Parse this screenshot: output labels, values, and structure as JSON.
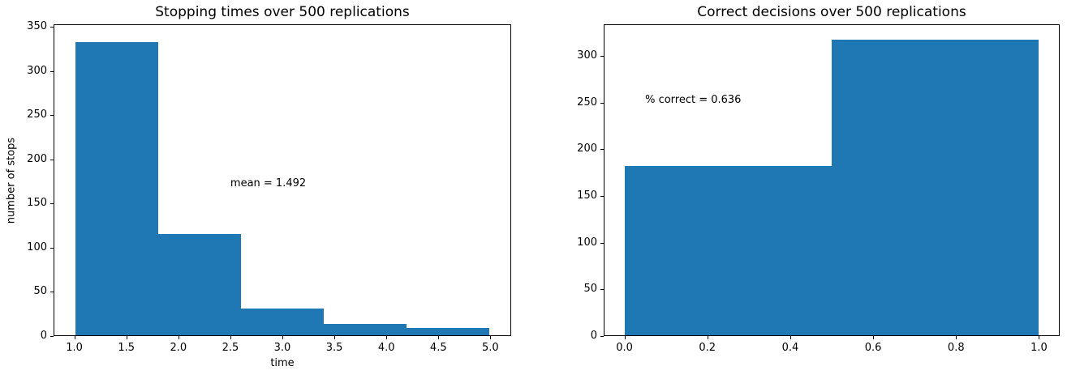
{
  "figure": {
    "background": "#ffffff",
    "bar_color": "#1f77b4",
    "axis_color": "#000000",
    "text_color": "#000000"
  },
  "chart_data": [
    {
      "type": "histogram",
      "title": "Stopping times over 500 replications",
      "xlabel": "time",
      "ylabel": "number of stops",
      "bin_edges": [
        1.0,
        1.8,
        2.6,
        3.4,
        4.2,
        5.0
      ],
      "counts": [
        334,
        115,
        30,
        13,
        8
      ],
      "total_replications": 500,
      "xlim": [
        0.8,
        5.2
      ],
      "ylim": [
        0,
        353
      ],
      "xtick_values": [
        1.0,
        1.5,
        2.0,
        2.5,
        3.0,
        3.5,
        4.0,
        4.5,
        5.0
      ],
      "xtick_labels": [
        "1.0",
        "1.5",
        "2.0",
        "2.5",
        "3.0",
        "3.5",
        "4.0",
        "4.5",
        "5.0"
      ],
      "ytick_values": [
        0,
        50,
        100,
        150,
        200,
        250,
        300,
        350
      ],
      "ytick_labels": [
        "0",
        "50",
        "100",
        "150",
        "200",
        "250",
        "300",
        "350"
      ],
      "annotation": {
        "text": "mean = 1.492",
        "x": 2.5,
        "y": 170
      },
      "grid": false,
      "legend": null
    },
    {
      "type": "histogram",
      "title": "Correct decisions over 500 replications",
      "xlabel": "",
      "ylabel": "",
      "bin_edges": [
        0.0,
        0.5,
        1.0
      ],
      "counts": [
        182,
        318
      ],
      "total_replications": 500,
      "xlim": [
        -0.05,
        1.05
      ],
      "ylim": [
        0,
        334
      ],
      "xtick_values": [
        0.0,
        0.2,
        0.4,
        0.6,
        0.8,
        1.0
      ],
      "xtick_labels": [
        "0.0",
        "0.2",
        "0.4",
        "0.6",
        "0.8",
        "1.0"
      ],
      "ytick_values": [
        0,
        50,
        100,
        150,
        200,
        250,
        300
      ],
      "ytick_labels": [
        "0",
        "50",
        "100",
        "150",
        "200",
        "250",
        "300"
      ],
      "annotation": {
        "text": "% correct = 0.636",
        "x": 0.05,
        "y": 250
      },
      "grid": false,
      "legend": null
    }
  ]
}
